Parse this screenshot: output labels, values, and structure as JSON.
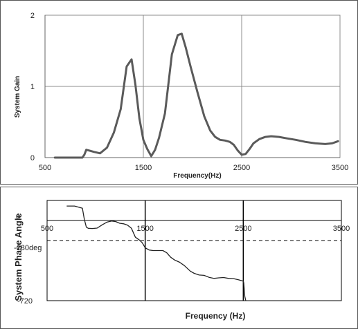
{
  "chart_data": [
    {
      "type": "line",
      "xlabel": "Frequency(Hz)",
      "ylabel": "System Gain",
      "xlim": [
        500,
        3500
      ],
      "ylim": [
        0,
        2
      ],
      "xticks": [
        "500",
        "1500",
        "2500",
        "3500"
      ],
      "yticks": [
        "0",
        "1",
        "2"
      ],
      "grid": "vertical-and-horizontal",
      "series": [
        {
          "color": "#5a5a5a",
          "x": [
            600,
            880,
            900,
            920,
            1000,
            1060,
            1130,
            1200,
            1270,
            1330,
            1380,
            1420,
            1460,
            1500,
            1540,
            1580,
            1620,
            1660,
            1720,
            1790,
            1850,
            1890,
            1930,
            1980,
            2050,
            2120,
            2180,
            2230,
            2280,
            2330,
            2380,
            2420,
            2460,
            2500,
            2540,
            2580,
            2620,
            2680,
            2740,
            2800,
            2880,
            2960,
            3050,
            3150,
            3250,
            3350,
            3420,
            3480
          ],
          "y": [
            0.0,
            0.0,
            0.04,
            0.11,
            0.08,
            0.06,
            0.14,
            0.35,
            0.68,
            1.28,
            1.38,
            1.02,
            0.55,
            0.25,
            0.12,
            0.02,
            0.11,
            0.28,
            0.62,
            1.45,
            1.72,
            1.74,
            1.55,
            1.28,
            0.92,
            0.58,
            0.38,
            0.29,
            0.25,
            0.24,
            0.22,
            0.18,
            0.1,
            0.04,
            0.05,
            0.12,
            0.2,
            0.26,
            0.29,
            0.3,
            0.29,
            0.27,
            0.25,
            0.22,
            0.2,
            0.19,
            0.2,
            0.23
          ]
        }
      ]
    },
    {
      "type": "line",
      "xlabel": "Frequency (Hz)",
      "ylabel": "System Phase Angle",
      "xlim": [
        500,
        3500
      ],
      "ylim": [
        -720,
        180
      ],
      "xticks": [
        "500",
        "1500",
        "2500",
        "3500"
      ],
      "yticks": [
        "0",
        "-720"
      ],
      "annotation": "-180deg",
      "reference_line": {
        "y": -180,
        "style": "dashed"
      },
      "grid": "vertical",
      "series": [
        {
          "color": "#222222",
          "x": [
            700,
            780,
            860,
            880,
            900,
            920,
            960,
            1010,
            1060,
            1110,
            1160,
            1200,
            1240,
            1280,
            1320,
            1360,
            1400,
            1440,
            1470,
            1500,
            1540,
            1580,
            1620,
            1680,
            1720,
            1760,
            1800,
            1850,
            1900,
            1960,
            2000,
            2050,
            2100,
            2150,
            2200,
            2250,
            2300,
            2350,
            2400,
            2450,
            2500,
            2505,
            2515,
            2525
          ],
          "y": [
            130,
            130,
            110,
            10,
            -60,
            -70,
            -72,
            -68,
            -40,
            -15,
            -5,
            -10,
            -25,
            -30,
            -42,
            -70,
            -150,
            -175,
            -200,
            -245,
            -265,
            -270,
            -270,
            -270,
            -290,
            -330,
            -355,
            -375,
            -405,
            -455,
            -475,
            -490,
            -493,
            -510,
            -520,
            -515,
            -512,
            -520,
            -522,
            -532,
            -545,
            -560,
            -680,
            -720
          ]
        }
      ]
    }
  ]
}
